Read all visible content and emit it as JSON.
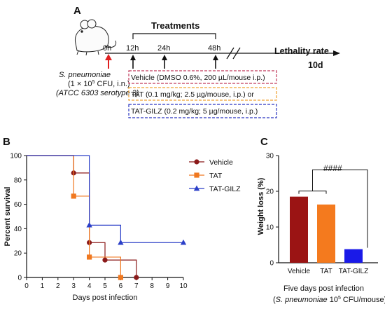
{
  "panel_a": {
    "panel_label": "A",
    "treatments_label": "Treatments",
    "timepoints": [
      "0h",
      "12h",
      "24h",
      "48h"
    ],
    "endpoint_label": "Lethality rate",
    "endpoint_day": "10d",
    "infection_line1": "S. pneumoniae",
    "infection_line2_a": "(1 × 10",
    "infection_line2_sup": "5",
    "infection_line2_b": " CFU, i.n.)",
    "infection_line3": "(ATCC 6303 serotype 3)",
    "boxes": [
      {
        "text": "Vehicle (DMSO 0.6%, 200 µL/mouse i.p.)",
        "color": "#c0395a"
      },
      {
        "text": "TAT (0.1 mg/kg; 2.5 µg/mouse, i.p.) or",
        "color": "#f0a030"
      },
      {
        "text": "TAT-GILZ (0.2 mg/kg; 5 µg/mouse, i.p.)",
        "color": "#2a35c0"
      }
    ]
  },
  "panel_b": {
    "panel_label": "B"
  },
  "panel_c": {
    "panel_label": "C",
    "significance": "####",
    "caption_line1": "Five days post infection",
    "caption_line2_a": "(",
    "caption_line2_species": "S. pneumoniae",
    "caption_line2_b": " 10",
    "caption_line2_sup": "5",
    "caption_line2_c": " CFU/mouse)"
  },
  "chart_data": [
    {
      "type": "line",
      "step": true,
      "xlabel": "Days post infection",
      "ylabel": "Percent survival",
      "xlim": [
        0,
        10
      ],
      "ylim": [
        0,
        100
      ],
      "xticks": [
        0,
        1,
        2,
        3,
        4,
        5,
        6,
        7,
        8,
        9,
        10
      ],
      "yticks": [
        0,
        20,
        40,
        60,
        80,
        100
      ],
      "legend": "right",
      "series": [
        {
          "name": "Vehicle",
          "color": "#8b1a1a",
          "marker": "circle",
          "x": [
            3,
            4,
            5,
            7
          ],
          "y": [
            85.7,
            28.6,
            14.3,
            0
          ]
        },
        {
          "name": "TAT",
          "color": "#f07820",
          "marker": "square",
          "x": [
            3,
            4,
            6
          ],
          "y": [
            66.7,
            16.7,
            0
          ]
        },
        {
          "name": "TAT-GILZ",
          "color": "#2b3fc8",
          "marker": "triangle",
          "x": [
            4,
            6,
            10
          ],
          "y": [
            42.9,
            28.6,
            28.6
          ]
        }
      ]
    },
    {
      "type": "bar",
      "ylabel": "Weight loss (%)",
      "ylim": [
        0,
        30
      ],
      "yticks": [
        0,
        10,
        20,
        30
      ],
      "categories": [
        "Vehicle",
        "TAT",
        "TAT-GILZ"
      ],
      "values": [
        18.5,
        16.3,
        3.8
      ],
      "colors": [
        "#9b1414",
        "#f47a1e",
        "#1a1ae8"
      ]
    }
  ]
}
